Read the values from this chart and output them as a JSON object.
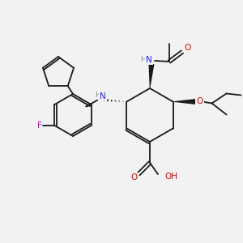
{
  "background_color": "#f2f2f2",
  "bond_color": "#1a1a1a",
  "atom_colors": {
    "N": "#2020ff",
    "O": "#dd0000",
    "F": "#dd00dd",
    "C": "#1a1a1a",
    "H": "#666666"
  },
  "figsize": [
    3.0,
    3.0
  ],
  "dpi": 100
}
